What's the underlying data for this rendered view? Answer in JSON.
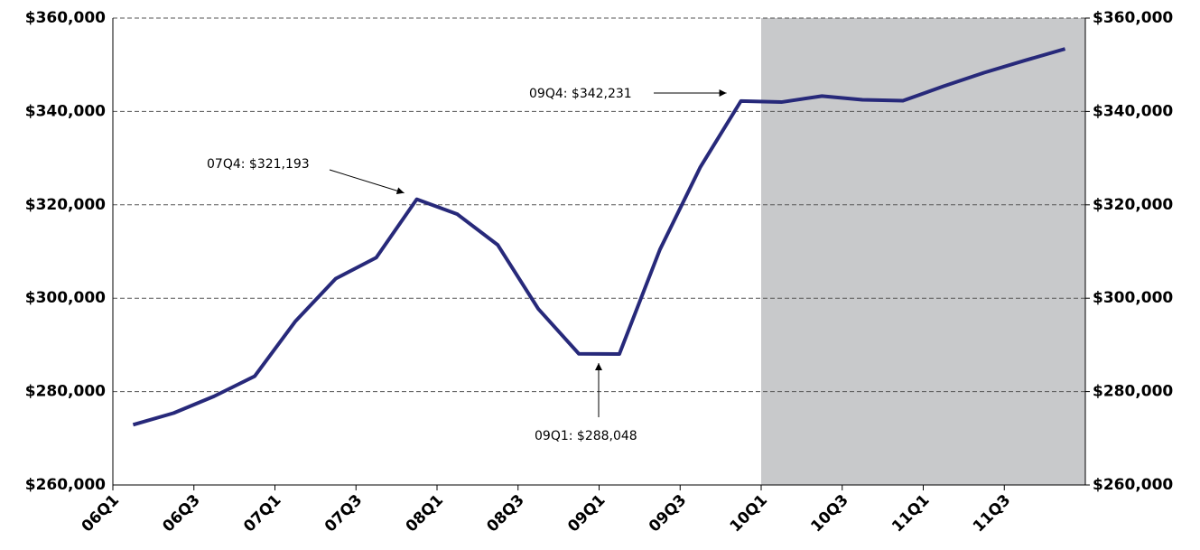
{
  "chart_data": {
    "type": "line",
    "categories": [
      "06Q1",
      null,
      "06Q3",
      null,
      "07Q1",
      null,
      "07Q3",
      null,
      "08Q1",
      null,
      "08Q3",
      null,
      "09Q1",
      null,
      "09Q3",
      null,
      "10Q1",
      null,
      "10Q3",
      null,
      "11Q1",
      null,
      "11Q3",
      null
    ],
    "series": [
      {
        "color": "#27297a",
        "values": [
          272900,
          275400,
          279000,
          283300,
          295000,
          304200,
          308700,
          321193,
          318000,
          311400,
          297700,
          288100,
          288048,
          310400,
          328100,
          342231,
          342000,
          343300,
          342500,
          342300,
          345400,
          348300,
          350900,
          353400
        ]
      }
    ],
    "ylim": [
      260000,
      360000
    ],
    "yticks": [
      {
        "value": 260000,
        "label": "$260,000"
      },
      {
        "value": 280000,
        "label": "$280,000"
      },
      {
        "value": 300000,
        "label": "$300,000"
      },
      {
        "value": 320000,
        "label": "$320,000"
      },
      {
        "value": 340000,
        "label": "$340,000"
      },
      {
        "value": 360000,
        "label": "$360,000"
      }
    ],
    "y2lim": [
      260000,
      360000
    ],
    "y2ticks": [
      {
        "value": 260000,
        "label": "$260,000"
      },
      {
        "value": 280000,
        "label": "$280,000"
      },
      {
        "value": 300000,
        "label": "$300,000"
      },
      {
        "value": 320000,
        "label": "$320,000"
      },
      {
        "value": 340000,
        "label": "$340,000"
      },
      {
        "value": 360000,
        "label": "$360,000"
      }
    ],
    "grid": true,
    "annotations": [
      "07Q4: $321,193",
      "09Q1: $288,048",
      "09Q4: $342,231"
    ]
  }
}
